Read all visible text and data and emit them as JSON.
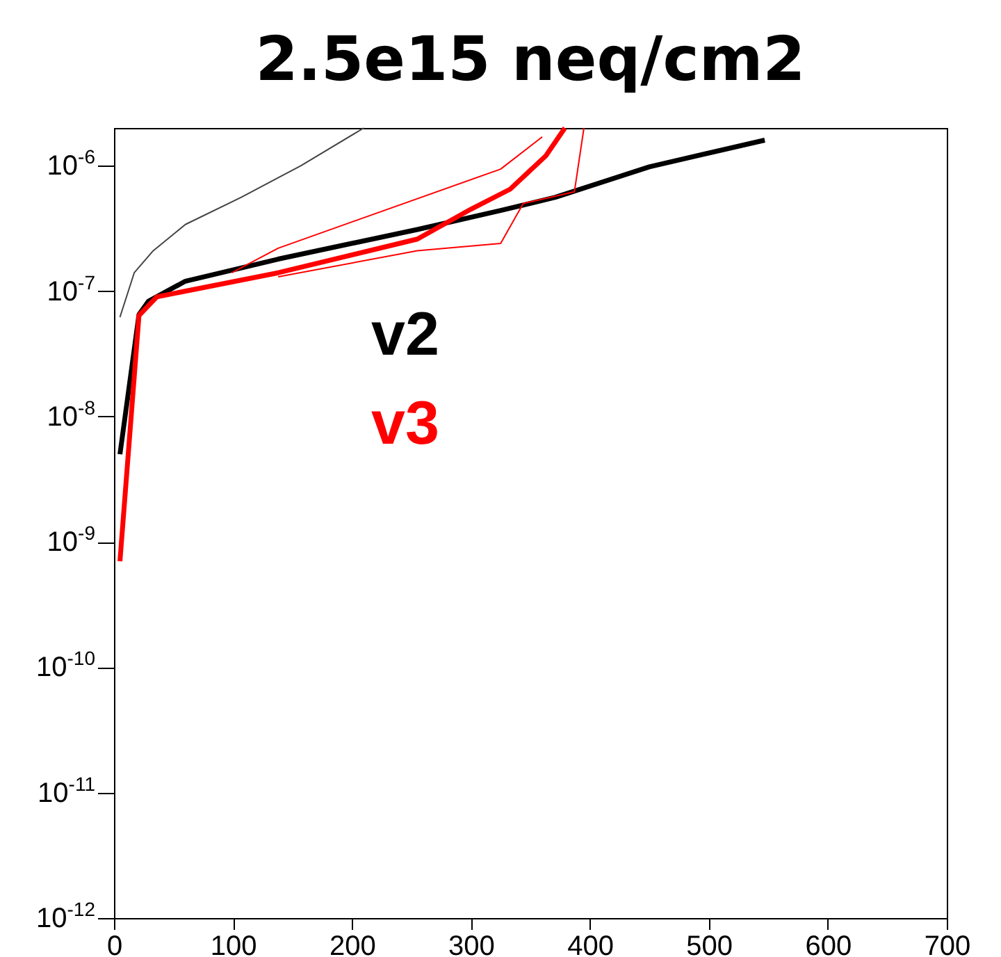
{
  "chart_data": {
    "type": "line",
    "title": "2.5e15 neq/cm2",
    "log": "y",
    "xlim": [
      0,
      700
    ],
    "xticks": [
      0,
      100,
      200,
      300,
      400,
      500,
      600,
      700
    ],
    "ylim": [
      1e-12,
      2e-06
    ],
    "yticks": [
      {
        "value": 1e-12,
        "label": "10$^{-12}$"
      },
      {
        "value": 1e-11,
        "label": "10$^{-11}$"
      },
      {
        "value": 1e-10,
        "label": "10$^{-10}$"
      },
      {
        "value": 1e-09,
        "label": "10$^{-9}$"
      },
      {
        "value": 1e-08,
        "label": "10$^{-8}$"
      },
      {
        "value": 1e-07,
        "label": "10$^{-7}$"
      },
      {
        "value": 1e-06,
        "label": "10$^{-6}$"
      }
    ],
    "series": [
      {
        "color": "#444444",
        "x": [
          5,
          17,
          33,
          60,
          107,
          157,
          210
        ],
        "values": [
          6.2e-08,
          1.4e-07,
          2.1e-07,
          3.4e-07,
          5.6e-07,
          1e-06,
          2e-06
        ]
      },
      {
        "name": "v2",
        "color": "#000000",
        "x": [
          5,
          21,
          29,
          60,
          138,
          255,
          325,
          371,
          450,
          547
        ],
        "values": [
          5e-09,
          6.5e-08,
          8.3e-08,
          1.2e-07,
          1.8e-07,
          3.1e-07,
          4.4e-07,
          5.6e-07,
          9.8e-07,
          1.6e-06
        ]
      },
      {
        "name": "v3",
        "color": "#ff0000",
        "x": [
          5,
          21,
          36,
          138,
          255,
          300,
          333,
          363,
          379
        ],
        "values": [
          7e-10,
          6.4e-08,
          9e-08,
          1.4e-07,
          2.6e-07,
          4.5e-07,
          6.5e-07,
          1.2e-06,
          2e-06
        ]
      },
      {
        "color": "#ff0000",
        "x": [
          99,
          138,
          325,
          360
        ],
        "values": [
          1.4e-07,
          2.2e-07,
          9.4e-07,
          1.7e-06
        ]
      },
      {
        "color": "#ff0000",
        "x": [
          138,
          255,
          325,
          344,
          387,
          395
        ],
        "values": [
          1.3e-07,
          2.1e-07,
          2.4e-07,
          5e-07,
          6.2e-07,
          2e-06
        ]
      }
    ]
  }
}
